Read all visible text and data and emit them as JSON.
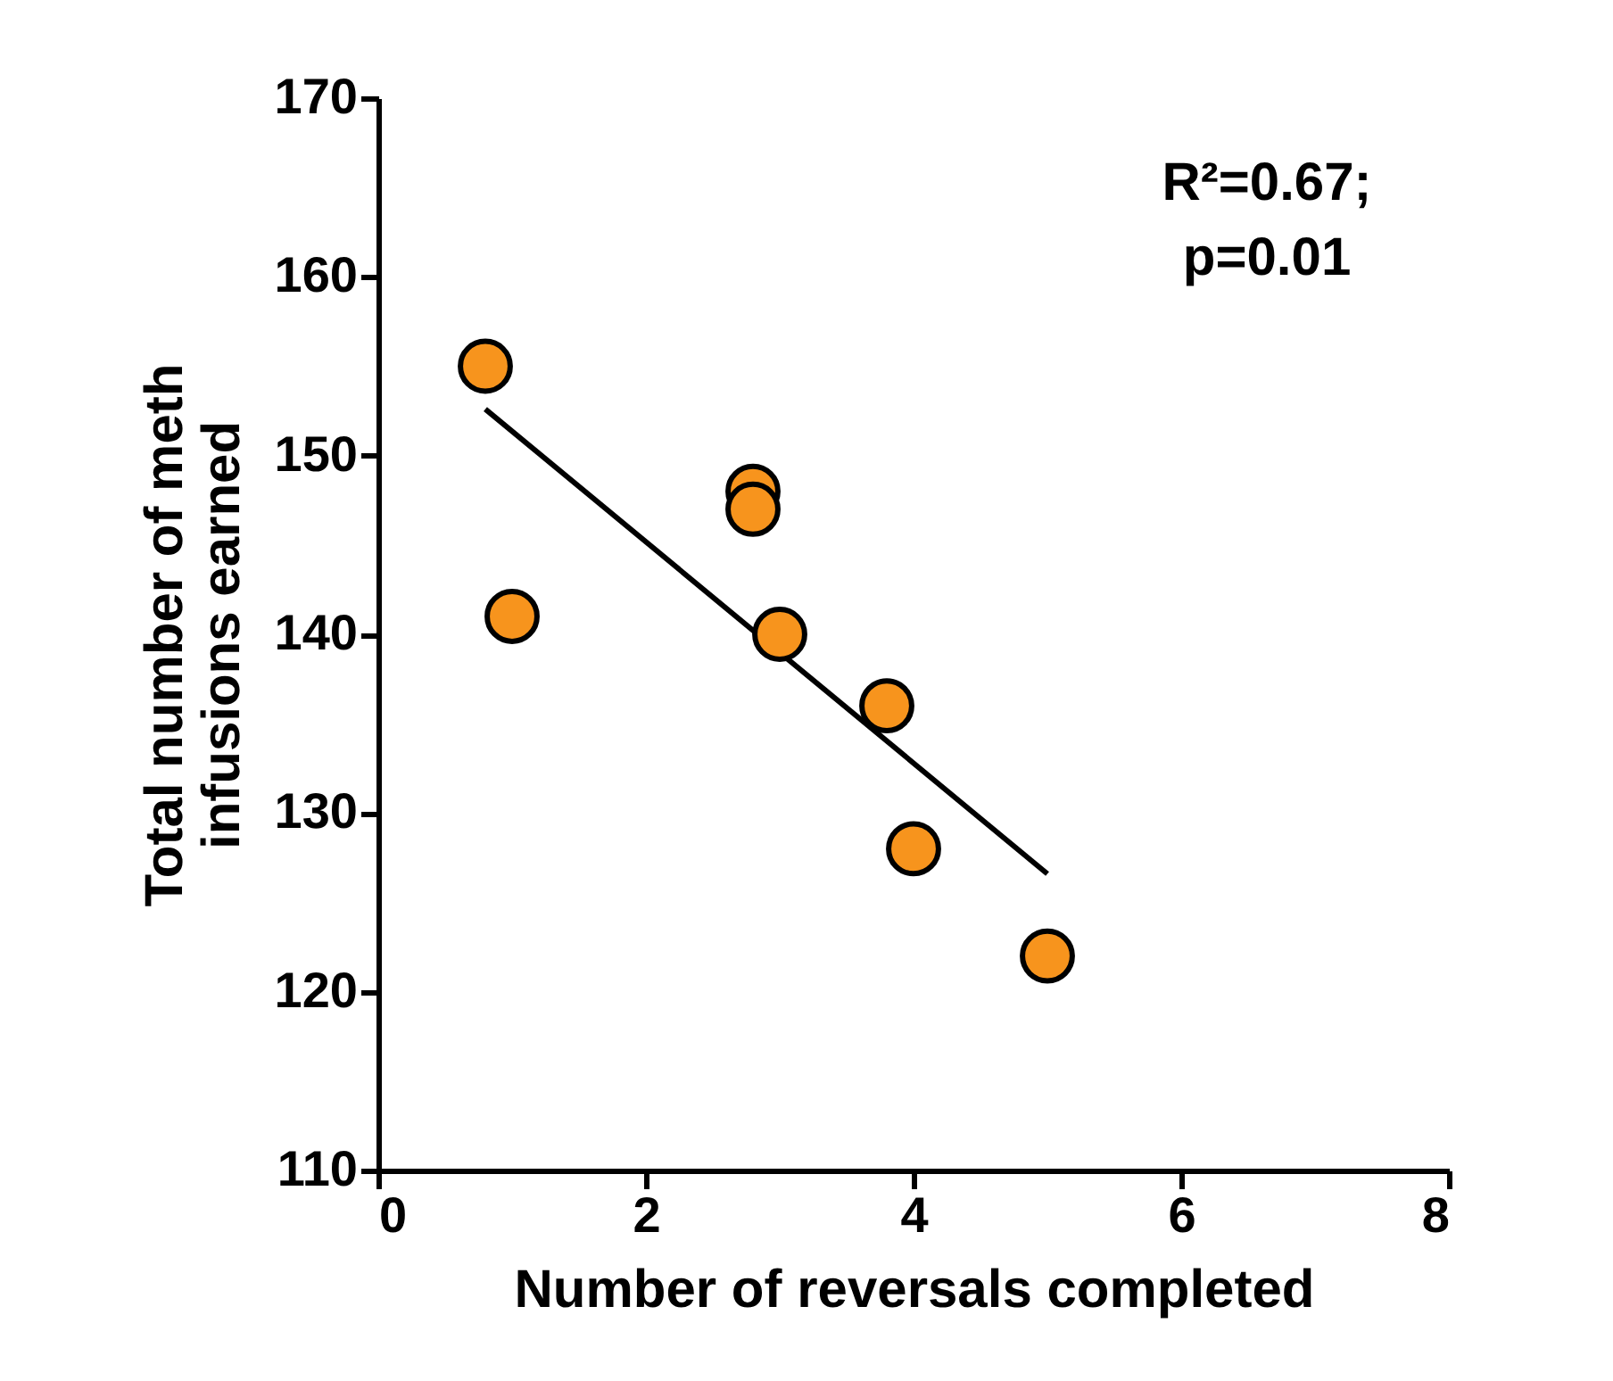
{
  "chart_data": {
    "type": "scatter",
    "xlabel": "Number of reversals completed",
    "ylabel": "Total number of meth\ninfusions earned",
    "annotations": [
      "R²=0.67;",
      "p=0.01"
    ],
    "xlim": [
      0,
      8
    ],
    "xticks": [
      0,
      2,
      4,
      6,
      8
    ],
    "ylim": [
      110,
      170
    ],
    "yticks": [
      110,
      120,
      130,
      140,
      150,
      160,
      170
    ],
    "grid": false,
    "series": [
      {
        "type": "line",
        "color": "#000000",
        "marker": "none",
        "x": [
          0.8,
          5
        ],
        "values": [
          152.6,
          126.6
        ]
      },
      {
        "color": "#f7941d",
        "marker": "circle",
        "x": [
          0.8,
          1,
          2.8,
          2.8,
          3,
          3.8,
          4,
          5
        ],
        "values": [
          155,
          141,
          148,
          147,
          140,
          136,
          128,
          122
        ]
      }
    ]
  }
}
